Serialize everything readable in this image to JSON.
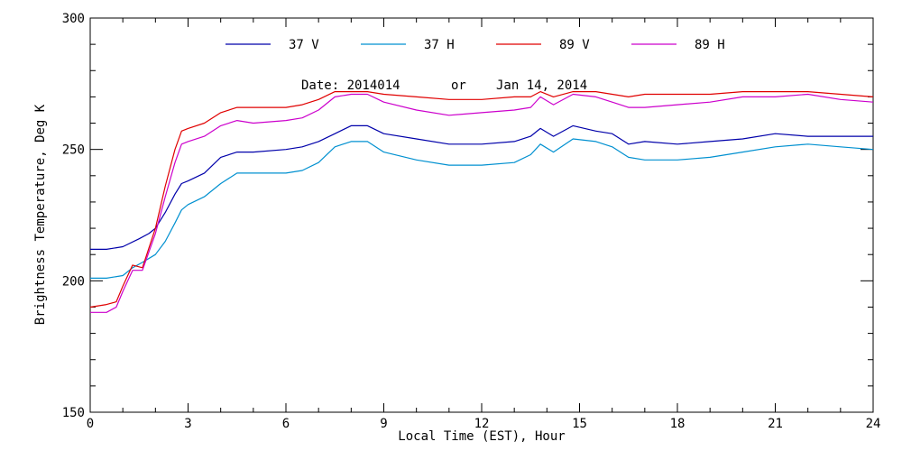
{
  "chart_data": {
    "type": "line",
    "xlabel": "Local Time (EST), Hour",
    "ylabel": "Brightness Temperature, Deg K",
    "annotation": {
      "date_label": "Date: 2014014",
      "or_label": "or",
      "date_text": "Jan 14, 2014"
    },
    "xlim": [
      0,
      24
    ],
    "ylim": [
      150,
      300
    ],
    "x_major_ticks": [
      0,
      3,
      6,
      9,
      12,
      15,
      18,
      21,
      24
    ],
    "x_tick_labels": [
      "0",
      "3",
      "6",
      "9",
      "12",
      "15",
      "18",
      "21",
      "24"
    ],
    "y_major_ticks": [
      150,
      200,
      250,
      300
    ],
    "y_tick_labels": [
      "150",
      "200",
      "250",
      "300"
    ],
    "grid": false,
    "legend_position": "top",
    "series": [
      {
        "name": "37 V",
        "color": "#0000aa",
        "x": [
          0,
          0.5,
          1,
          1.5,
          1.8,
          2,
          2.3,
          2.6,
          2.8,
          3,
          3.5,
          4,
          4.5,
          5,
          6,
          6.5,
          7,
          7.5,
          8,
          8.5,
          9,
          10,
          11,
          12,
          13,
          13.5,
          13.8,
          14.2,
          14.8,
          15.5,
          16,
          16.5,
          17,
          18,
          19,
          20,
          21,
          22,
          23,
          24
        ],
        "y": [
          212,
          212,
          213,
          216,
          218,
          220,
          226,
          233,
          237,
          238,
          241,
          247,
          249,
          249,
          250,
          251,
          253,
          256,
          259,
          259,
          256,
          254,
          252,
          252,
          253,
          255,
          258,
          255,
          259,
          257,
          256,
          252,
          253,
          252,
          253,
          254,
          256,
          255,
          255,
          255
        ]
      },
      {
        "name": "37 H",
        "color": "#0090d0",
        "x": [
          0,
          0.5,
          1,
          1.3,
          1.6,
          2,
          2.3,
          2.6,
          2.8,
          3,
          3.5,
          4,
          4.5,
          5,
          6,
          6.5,
          7,
          7.5,
          8,
          8.5,
          9,
          10,
          11,
          12,
          13,
          13.5,
          13.8,
          14.2,
          14.8,
          15.5,
          16,
          16.5,
          17,
          18,
          19,
          20,
          21,
          22,
          23,
          24
        ],
        "y": [
          201,
          201,
          202,
          205,
          207,
          210,
          215,
          222,
          227,
          229,
          232,
          237,
          241,
          241,
          241,
          242,
          245,
          251,
          253,
          253,
          249,
          246,
          244,
          244,
          245,
          248,
          252,
          249,
          254,
          253,
          251,
          247,
          246,
          246,
          247,
          249,
          251,
          252,
          251,
          250
        ]
      },
      {
        "name": "89 V",
        "color": "#e00000",
        "x": [
          0,
          0.5,
          0.8,
          1,
          1.3,
          1.6,
          2,
          2.3,
          2.6,
          2.8,
          3,
          3.5,
          4,
          4.5,
          5,
          6,
          6.5,
          7,
          7.5,
          8,
          8.5,
          9,
          10,
          11,
          12,
          13,
          13.5,
          13.8,
          14.2,
          14.8,
          15.5,
          16,
          16.5,
          17,
          18,
          19,
          20,
          21,
          22,
          23,
          24
        ],
        "y": [
          190,
          191,
          192,
          198,
          206,
          205,
          220,
          236,
          250,
          257,
          258,
          260,
          264,
          266,
          266,
          266,
          267,
          269,
          272,
          272,
          272,
          271,
          270,
          269,
          269,
          270,
          270,
          272,
          270,
          272,
          272,
          271,
          270,
          271,
          271,
          271,
          272,
          272,
          272,
          271,
          270
        ]
      },
      {
        "name": "89 H",
        "color": "#cc00cc",
        "x": [
          0,
          0.5,
          0.8,
          1,
          1.3,
          1.6,
          2,
          2.3,
          2.6,
          2.8,
          3,
          3.5,
          4,
          4.5,
          5,
          6,
          6.5,
          7,
          7.5,
          8,
          8.5,
          9,
          10,
          11,
          12,
          13,
          13.5,
          13.8,
          14.2,
          14.8,
          15.5,
          16,
          16.5,
          17,
          18,
          19,
          20,
          21,
          22,
          23,
          24
        ],
        "y": [
          188,
          188,
          190,
          196,
          204,
          204,
          218,
          232,
          245,
          252,
          253,
          255,
          259,
          261,
          260,
          261,
          262,
          265,
          270,
          271,
          271,
          268,
          265,
          263,
          264,
          265,
          266,
          270,
          267,
          271,
          270,
          268,
          266,
          266,
          267,
          268,
          270,
          270,
          271,
          269,
          268
        ]
      }
    ]
  }
}
